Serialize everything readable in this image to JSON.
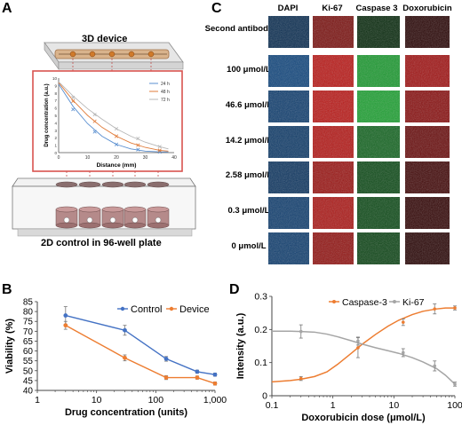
{
  "panels": {
    "a": "A",
    "b": "B",
    "c": "C",
    "d": "D"
  },
  "panelA": {
    "title_3d": "3D device",
    "title_2d": "2D control in 96-well plate",
    "chart_data": {
      "type": "line",
      "xlabel": "Distance (mm)",
      "ylabel": "Drug concentration (a.u.)",
      "xlim": [
        0,
        40
      ],
      "ylim": [
        0,
        10
      ],
      "xticks": [
        0,
        10,
        20,
        30,
        40
      ],
      "yticks": [
        0,
        1,
        2,
        3,
        4,
        5,
        6,
        7,
        8,
        9,
        10
      ],
      "legend_position": "top-right",
      "series": [
        {
          "name": "24 h",
          "color": "#5a8fd0",
          "x": [
            0,
            5,
            10,
            15,
            20,
            25,
            30,
            35,
            38
          ],
          "y": [
            9.2,
            6.2,
            3.9,
            2.2,
            1.1,
            0.5,
            0.2,
            0.1,
            0.1
          ],
          "markers_x": [
            5,
            12.5,
            20,
            27.5,
            35
          ],
          "markers_y": [
            5.8,
            2.8,
            1.1,
            0.4,
            0.1
          ]
        },
        {
          "name": "48 h",
          "color": "#e07b39",
          "x": [
            0,
            5,
            10,
            15,
            20,
            25,
            30,
            35,
            38
          ],
          "y": [
            9.4,
            7.0,
            5.0,
            3.4,
            2.2,
            1.3,
            0.7,
            0.3,
            0.2
          ],
          "markers_x": [
            5,
            12.5,
            20,
            27.5,
            35
          ],
          "markers_y": [
            6.9,
            4.2,
            2.2,
            1.0,
            0.3
          ]
        },
        {
          "name": "72 h",
          "color": "#b7b7b7",
          "x": [
            0,
            5,
            10,
            15,
            20,
            25,
            30,
            35,
            38
          ],
          "y": [
            9.5,
            7.6,
            5.9,
            4.5,
            3.2,
            2.2,
            1.4,
            0.8,
            0.5
          ],
          "markers_x": [
            5,
            12.5,
            20,
            27.5,
            35
          ],
          "markers_y": [
            7.4,
            5.1,
            3.2,
            1.9,
            0.8
          ]
        }
      ]
    }
  },
  "panelC": {
    "columns": [
      "DAPI",
      "Ki-67",
      "Caspase 3",
      "Doxorubicin"
    ],
    "rows": [
      "Second antibody only",
      "100 μmol/L",
      "46.6 μmol/L",
      "14.2 μmol/L",
      "2.58 μmol/L",
      "0.3 μmol/L",
      "0 μmol/L"
    ],
    "intensity": [
      [
        0.35,
        0.55,
        0.1,
        0.05
      ],
      [
        0.65,
        0.95,
        0.95,
        0.8
      ],
      [
        0.55,
        0.95,
        1.0,
        0.65
      ],
      [
        0.5,
        0.9,
        0.55,
        0.45
      ],
      [
        0.45,
        0.75,
        0.35,
        0.2
      ],
      [
        0.55,
        0.85,
        0.35,
        0.1
      ],
      [
        0.55,
        0.7,
        0.3,
        0.05
      ]
    ],
    "colors": {
      "dapi": "#1e6fc4",
      "ki67": "#d9211e",
      "caspase": "#23b33a",
      "doxo": "#d61c1c"
    }
  },
  "panelB": {
    "chart_data": {
      "type": "line",
      "xlabel": "Drug concentration (units)",
      "ylabel": "Viability (%)",
      "xscale": "log",
      "xlim": [
        1,
        1000
      ],
      "ylim": [
        40,
        85
      ],
      "xticks": [
        1,
        10,
        100,
        1000
      ],
      "xtick_labels": [
        "1",
        "10",
        "100",
        "1,000"
      ],
      "yticks": [
        40,
        45,
        50,
        55,
        60,
        65,
        70,
        75,
        80,
        85
      ],
      "legend_position": "top-right",
      "series": [
        {
          "name": "Control",
          "color": "#4472c4",
          "x": [
            3,
            30,
            150,
            500,
            1000
          ],
          "y": [
            78,
            70.5,
            56,
            49.5,
            48
          ],
          "err": [
            4.5,
            2.5,
            1.2,
            0.8,
            0.8
          ]
        },
        {
          "name": "Device",
          "color": "#ed7d31",
          "x": [
            3,
            30,
            150,
            500,
            1000
          ],
          "y": [
            73,
            56.5,
            46.5,
            46.5,
            43.5
          ],
          "err": [
            2.0,
            1.5,
            1.0,
            0.8,
            0.8
          ]
        }
      ]
    }
  },
  "panelD": {
    "chart_data": {
      "type": "line",
      "xlabel": "Doxorubicin dose (μmol/L)",
      "ylabel": "Intensity (a.u.)",
      "xscale": "log",
      "xlim": [
        0.1,
        100
      ],
      "ylim": [
        0,
        0.3
      ],
      "xticks": [
        0.1,
        1,
        10,
        100
      ],
      "xtick_labels": [
        "0.1",
        "1",
        "10",
        "100"
      ],
      "yticks": [
        0,
        0.1,
        0.2,
        0.3
      ],
      "ytick_labels": [
        "0",
        "0.1",
        "0.2",
        "0.3"
      ],
      "legend_position": "top-right",
      "series": [
        {
          "name": "Caspase-3",
          "color": "#ed7d31",
          "curve_x": [
            0.1,
            0.2,
            0.3,
            0.5,
            0.8,
            1.2,
            2,
            3,
            5,
            8,
            12,
            20,
            30,
            50,
            70,
            100
          ],
          "curve_y": [
            0.042,
            0.046,
            0.05,
            0.058,
            0.072,
            0.095,
            0.128,
            0.155,
            0.185,
            0.21,
            0.228,
            0.245,
            0.255,
            0.262,
            0.265,
            0.265
          ],
          "points_x": [
            0.3,
            2.58,
            14.2,
            46.6,
            100
          ],
          "points_y": [
            0.052,
            0.145,
            0.222,
            0.262,
            0.265
          ],
          "err": [
            0.006,
            0.03,
            0.01,
            0.015,
            0.006
          ]
        },
        {
          "name": "Ki-67",
          "color": "#a5a5a5",
          "curve_x": [
            0.1,
            0.2,
            0.3,
            0.5,
            0.8,
            1.2,
            2,
            3,
            5,
            8,
            12,
            20,
            30,
            50,
            70,
            100
          ],
          "curve_y": [
            0.195,
            0.195,
            0.194,
            0.192,
            0.186,
            0.178,
            0.166,
            0.156,
            0.145,
            0.136,
            0.128,
            0.115,
            0.102,
            0.082,
            0.062,
            0.035
          ],
          "points_x": [
            0.3,
            2.58,
            14.2,
            46.6,
            100
          ],
          "points_y": [
            0.194,
            0.165,
            0.13,
            0.09,
            0.035
          ],
          "err": [
            0.02,
            0.012,
            0.012,
            0.015,
            0.006
          ]
        }
      ]
    }
  }
}
